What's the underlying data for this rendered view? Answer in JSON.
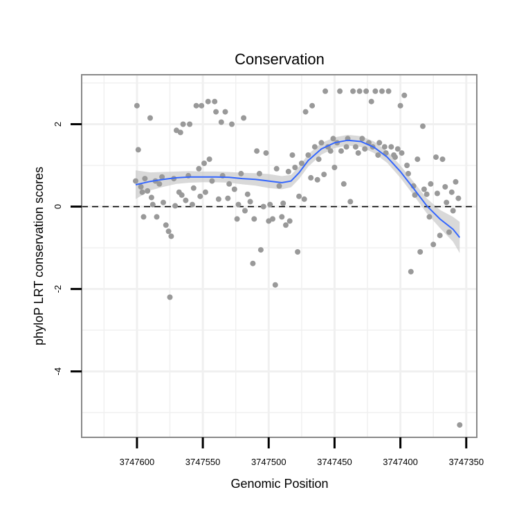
{
  "chart_data": {
    "type": "scatter",
    "title": "Conservation",
    "xlabel": "Genomic Position",
    "ylabel": "phyloP LRT conservation scores",
    "xlim": [
      3747642,
      3747342
    ],
    "ylim": [
      -5.6,
      3.2
    ],
    "x_reversed": true,
    "xticks": [
      3747600,
      3747550,
      3747500,
      3747450,
      3747400,
      3747350
    ],
    "xtick_labels": [
      "3747600",
      "3747550",
      "3747500",
      "3747450",
      "3747400",
      "3747350"
    ],
    "yticks": [
      2,
      0,
      -2,
      -4
    ],
    "ytick_labels": [
      "2",
      "0",
      "-2",
      "-4"
    ],
    "grid": true,
    "reference_line": {
      "y": 0,
      "style": "dashed"
    },
    "colors": {
      "points": "#999999",
      "smooth_line": "#3366ff",
      "confidence_band": "#cccccc",
      "grid": "#f0f0f0",
      "panel_border": "#888888"
    },
    "points": {
      "x": [
        3747601,
        3747600,
        3747599,
        3747597,
        3747596,
        3747595,
        3747594,
        3747592,
        3747590,
        3747589,
        3747588,
        3747586,
        3747585,
        3747583,
        3747581,
        3747580,
        3747578,
        3747576,
        3747575,
        3747574,
        3747572,
        3747571,
        3747570,
        3747568,
        3747567,
        3747566,
        3747565,
        3747563,
        3747561,
        3747560,
        3747558,
        3747557,
        3747555,
        3747553,
        3747552,
        3747551,
        3747549,
        3747548,
        3747546,
        3747545,
        3747543,
        3747541,
        3747540,
        3747538,
        3747536,
        3747535,
        3747533,
        3747531,
        3747530,
        3747528,
        3747526,
        3747524,
        3747523,
        3747521,
        3747519,
        3747518,
        3747516,
        3747514,
        3747512,
        3747511,
        3747509,
        3747507,
        3747506,
        3747504,
        3747502,
        3747500,
        3747499,
        3747497,
        3747495,
        3747494,
        3747492,
        3747490,
        3747489,
        3747487,
        3747485,
        3747484,
        3747482,
        3747480,
        3747478,
        3747477,
        3747475,
        3747473,
        3747472,
        3747470,
        3747468,
        3747467,
        3747465,
        3747463,
        3747462,
        3747460,
        3747458,
        3747457,
        3747455,
        3747453,
        3747451,
        3747450,
        3747448,
        3747446,
        3747445,
        3747443,
        3747441,
        3747440,
        3747438,
        3747436,
        3747434,
        3747432,
        3747431,
        3747429,
        3747427,
        3747426,
        3747424,
        3747422,
        3747421,
        3747419,
        3747417,
        3747416,
        3747414,
        3747412,
        3747411,
        3747409,
        3747407,
        3747405,
        3747404,
        3747402,
        3747400,
        3747399,
        3747397,
        3747395,
        3747394,
        3747392,
        3747390,
        3747389,
        3747387,
        3747385,
        3747383,
        3747382,
        3747380,
        3747378,
        3747377,
        3747375,
        3747373,
        3747372,
        3747370,
        3747368,
        3747366,
        3747365,
        3747363,
        3747361,
        3747360,
        3747358,
        3747356,
        3747355
      ],
      "y": [
        0.62,
        2.45,
        1.38,
        0.48,
        0.35,
        -0.25,
        0.68,
        0.38,
        2.15,
        0.22,
        0.05,
        0.62,
        -0.25,
        0.55,
        0.72,
        0.1,
        -0.45,
        -0.6,
        -2.2,
        -0.72,
        0.68,
        0.02,
        1.85,
        0.35,
        1.8,
        0.28,
        2.0,
        0.15,
        0.75,
        2.0,
        0.05,
        0.45,
        2.45,
        0.92,
        0.25,
        2.45,
        1.05,
        0.35,
        2.55,
        1.15,
        0.62,
        2.55,
        2.3,
        0.18,
        2.05,
        0.75,
        2.3,
        0.2,
        0.55,
        2.0,
        0.42,
        -0.3,
        0.05,
        0.8,
        2.15,
        -0.1,
        0.3,
        0.12,
        -1.38,
        -0.3,
        1.35,
        0.8,
        -1.05,
        0.0,
        1.3,
        -0.35,
        0.05,
        -0.3,
        -1.9,
        0.92,
        0.5,
        -0.25,
        0.08,
        -0.45,
        0.85,
        -0.35,
        1.25,
        0.95,
        -1.1,
        0.25,
        1.05,
        0.18,
        2.3,
        1.25,
        0.7,
        2.45,
        1.45,
        0.65,
        1.15,
        1.55,
        0.78,
        2.8,
        1.45,
        1.35,
        1.65,
        0.95,
        1.55,
        2.8,
        1.35,
        0.55,
        1.45,
        1.65,
        0.12,
        2.8,
        1.45,
        1.3,
        2.8,
        1.65,
        1.4,
        2.8,
        1.55,
        2.55,
        1.45,
        2.8,
        1.25,
        1.55,
        2.8,
        1.45,
        1.3,
        2.8,
        1.45,
        1.25,
        1.2,
        1.4,
        2.45,
        1.3,
        2.7,
        1.0,
        0.8,
        -1.58,
        0.5,
        0.28,
        1.15,
        -1.1,
        1.95,
        0.42,
        0.3,
        -0.25,
        0.55,
        -0.92,
        1.2,
        0.32,
        -0.7,
        1.15,
        0.48,
        0.1,
        -0.62,
        0.35,
        -0.1,
        0.6,
        0.2,
        -5.3
      ]
    },
    "smooth": {
      "x": [
        3747601,
        3747590,
        3747580,
        3747570,
        3747560,
        3747550,
        3747540,
        3747530,
        3747520,
        3747510,
        3747500,
        3747490,
        3747483,
        3747477,
        3747470,
        3747460,
        3747450,
        3747440,
        3747430,
        3747420,
        3747410,
        3747400,
        3747390,
        3747380,
        3747370,
        3747360,
        3747355
      ],
      "y": [
        0.53,
        0.61,
        0.66,
        0.7,
        0.72,
        0.72,
        0.72,
        0.71,
        0.68,
        0.66,
        0.62,
        0.58,
        0.62,
        0.82,
        1.12,
        1.4,
        1.55,
        1.61,
        1.58,
        1.44,
        1.2,
        0.85,
        0.44,
        0.02,
        -0.3,
        -0.55,
        -0.75
      ]
    },
    "band_halfwidth": [
      0.35,
      0.22,
      0.18,
      0.15,
      0.14,
      0.13,
      0.13,
      0.13,
      0.14,
      0.15,
      0.17,
      0.16,
      0.15,
      0.15,
      0.15,
      0.14,
      0.13,
      0.13,
      0.13,
      0.14,
      0.14,
      0.15,
      0.16,
      0.18,
      0.22,
      0.3,
      0.38
    ]
  }
}
